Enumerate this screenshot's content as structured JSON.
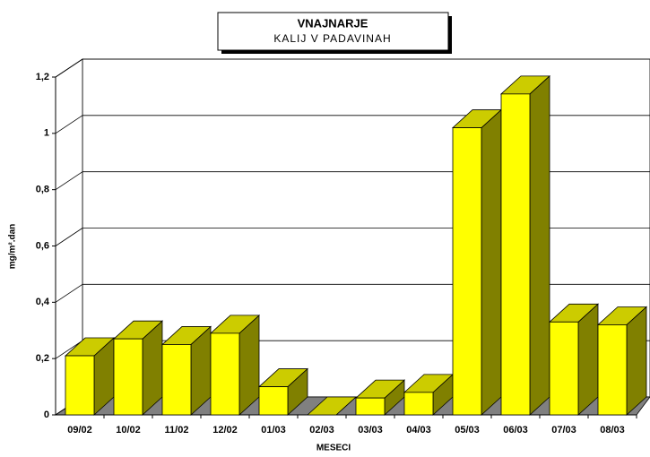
{
  "chart_data": {
    "type": "bar",
    "title": "VNAJNARJE",
    "subtitle": "KALIJ V PADAVINAH",
    "x_label": "MESECI",
    "y_label": "mg/m².dan",
    "categories": [
      "09/02",
      "10/02",
      "11/02",
      "12/02",
      "01/03",
      "02/03",
      "03/03",
      "04/03",
      "05/03",
      "06/03",
      "07/03",
      "08/03"
    ],
    "values": [
      0.21,
      0.27,
      0.25,
      0.29,
      0.1,
      0,
      0.06,
      0.08,
      1.02,
      1.14,
      0.33,
      0.32
    ],
    "color": "#ffff00",
    "ylim": [
      0,
      1.2
    ],
    "yticks": [
      0,
      {
        "value": 0.2,
        "label": "0,2"
      },
      {
        "value": 0.4,
        "label": "0,4"
      },
      {
        "value": 0.6,
        "label": "0,6"
      },
      {
        "value": 0.8,
        "label": "0,8"
      },
      1,
      {
        "value": 1.2,
        "label": "1,2"
      }
    ],
    "grid": true
  }
}
